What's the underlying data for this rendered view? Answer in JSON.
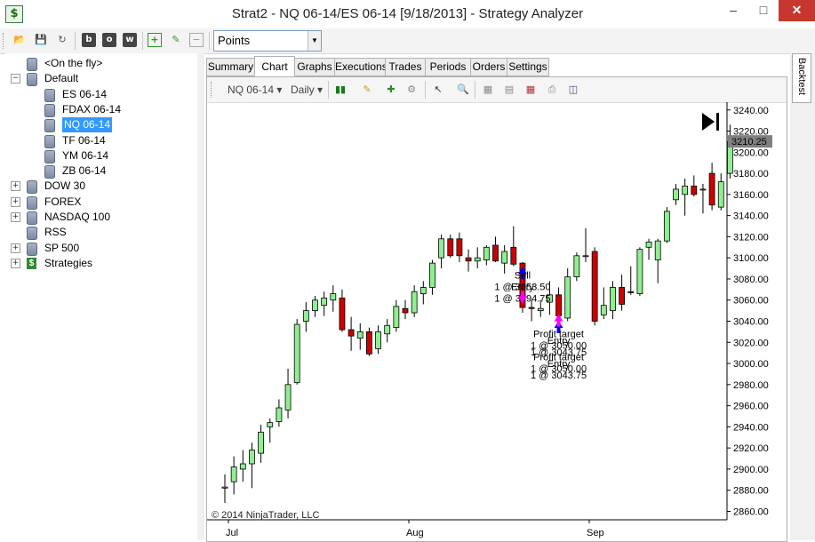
{
  "window": {
    "title": "Strat2 - NQ 06-14/ES 06-14 [9/18/2013] - Strategy Analyzer",
    "app_icon": "$",
    "min_label": "–",
    "max_label": "□",
    "close_label": "✕"
  },
  "toolbar": {
    "buttons": [
      "open-folder-icon",
      "save-icon",
      "refresh-icon",
      "b",
      "o",
      "w",
      "add-icon",
      "edit-icon",
      "remove-icon"
    ],
    "display_unit": "Points"
  },
  "tree": {
    "items": [
      {
        "label": "<On the fly>",
        "icon": "database-icon"
      },
      {
        "label": "Default",
        "icon": "database-icon",
        "expander": "−"
      },
      {
        "label": "ES 06-14",
        "icon": "database-icon"
      },
      {
        "label": "FDAX 06-14",
        "icon": "database-icon"
      },
      {
        "label": "NQ 06-14",
        "icon": "database-icon",
        "selected": true
      },
      {
        "label": "TF 06-14",
        "icon": "database-icon"
      },
      {
        "label": "YM 06-14",
        "icon": "database-icon"
      },
      {
        "label": "ZB 06-14",
        "icon": "database-icon"
      },
      {
        "label": "DOW 30",
        "icon": "database-icon",
        "expander": "+"
      },
      {
        "label": "FOREX",
        "icon": "database-icon",
        "expander": "+"
      },
      {
        "label": "NASDAQ 100",
        "icon": "database-icon",
        "expander": "+"
      },
      {
        "label": "RSS",
        "icon": "database-icon"
      },
      {
        "label": "SP 500",
        "icon": "database-icon",
        "expander": "+"
      },
      {
        "label": "Strategies",
        "icon": "strategy-icon",
        "expander": "+"
      }
    ]
  },
  "tabs": [
    "Summary",
    "Chart",
    "Graphs",
    "Executions",
    "Trades",
    "Periods",
    "Orders",
    "Settings"
  ],
  "active_tab": "Chart",
  "chart_toolbar": {
    "instrument": "NQ 06-14 ▾",
    "period": "Daily ▾"
  },
  "side_tab": "Backtest",
  "chart": {
    "copyright": "© 2014 NinjaTrader, LLC",
    "last_price": "3210.25",
    "colors": {
      "up": "#90ee90",
      "down": "#cc0000",
      "outline": "#000000",
      "long_arrow": "#0000ff",
      "short_arrow": "#ff00ff",
      "price_marker": "#808080"
    }
  },
  "chart_data": {
    "type": "candlestick",
    "y_ticks": [
      "3240.00",
      "3220.00",
      "3200.00",
      "3180.00",
      "3160.00",
      "3140.00",
      "3120.00",
      "3100.00",
      "3080.00",
      "3060.00",
      "3040.00",
      "3020.00",
      "3000.00",
      "2980.00",
      "2960.00",
      "2940.00",
      "2920.00",
      "2900.00",
      "2880.00",
      "2860.00"
    ],
    "ylim": [
      2852,
      3244
    ],
    "x_ticks": [
      "Jul",
      "Aug",
      "Sep"
    ],
    "x_tick_bar_index": [
      0,
      20,
      40
    ],
    "candles": [
      {
        "o": 2882,
        "h": 2895,
        "l": 2868,
        "c": 2883
      },
      {
        "o": 2888,
        "h": 2912,
        "l": 2876,
        "c": 2902
      },
      {
        "o": 2900,
        "h": 2918,
        "l": 2888,
        "c": 2905
      },
      {
        "o": 2905,
        "h": 2925,
        "l": 2882,
        "c": 2918
      },
      {
        "o": 2915,
        "h": 2942,
        "l": 2906,
        "c": 2935
      },
      {
        "o": 2940,
        "h": 2948,
        "l": 2925,
        "c": 2944
      },
      {
        "o": 2945,
        "h": 2966,
        "l": 2940,
        "c": 2958
      },
      {
        "o": 2956,
        "h": 2995,
        "l": 2948,
        "c": 2980
      },
      {
        "o": 2982,
        "h": 3042,
        "l": 2980,
        "c": 3037
      },
      {
        "o": 3040,
        "h": 3058,
        "l": 3030,
        "c": 3050
      },
      {
        "o": 3050,
        "h": 3064,
        "l": 3044,
        "c": 3060
      },
      {
        "o": 3055,
        "h": 3068,
        "l": 3045,
        "c": 3062
      },
      {
        "o": 3060,
        "h": 3074,
        "l": 3049,
        "c": 3066
      },
      {
        "o": 3062,
        "h": 3070,
        "l": 3030,
        "c": 3032
      },
      {
        "o": 3032,
        "h": 3044,
        "l": 3012,
        "c": 3026
      },
      {
        "o": 3024,
        "h": 3038,
        "l": 3013,
        "c": 3030
      },
      {
        "o": 3030,
        "h": 3034,
        "l": 3007,
        "c": 3009
      },
      {
        "o": 3014,
        "h": 3036,
        "l": 3009,
        "c": 3030
      },
      {
        "o": 3028,
        "h": 3042,
        "l": 3020,
        "c": 3036
      },
      {
        "o": 3034,
        "h": 3060,
        "l": 3030,
        "c": 3054
      },
      {
        "o": 3052,
        "h": 3060,
        "l": 3042,
        "c": 3048
      },
      {
        "o": 3048,
        "h": 3074,
        "l": 3044,
        "c": 3068
      },
      {
        "o": 3066,
        "h": 3078,
        "l": 3056,
        "c": 3072
      },
      {
        "o": 3072,
        "h": 3098,
        "l": 3065,
        "c": 3095
      },
      {
        "o": 3100,
        "h": 3122,
        "l": 3090,
        "c": 3118
      },
      {
        "o": 3118,
        "h": 3122,
        "l": 3100,
        "c": 3102
      },
      {
        "o": 3118,
        "h": 3124,
        "l": 3096,
        "c": 3102
      },
      {
        "o": 3100,
        "h": 3108,
        "l": 3087,
        "c": 3097
      },
      {
        "o": 3097,
        "h": 3110,
        "l": 3090,
        "c": 3100
      },
      {
        "o": 3098,
        "h": 3112,
        "l": 3093,
        "c": 3110
      },
      {
        "o": 3112,
        "h": 3120,
        "l": 3096,
        "c": 3097
      },
      {
        "o": 3095,
        "h": 3112,
        "l": 3085,
        "c": 3106
      },
      {
        "o": 3110,
        "h": 3130,
        "l": 3092,
        "c": 3094
      },
      {
        "o": 3095,
        "h": 3096,
        "l": 3048,
        "c": 3053
      },
      {
        "o": 3053,
        "h": 3060,
        "l": 3040,
        "c": 3052
      },
      {
        "o": 3050,
        "h": 3060,
        "l": 3044,
        "c": 3052
      },
      {
        "o": 3058,
        "h": 3078,
        "l": 3046,
        "c": 3065
      },
      {
        "o": 3065,
        "h": 3072,
        "l": 3043,
        "c": 3045
      },
      {
        "o": 3043,
        "h": 3090,
        "l": 3040,
        "c": 3082
      },
      {
        "o": 3082,
        "h": 3105,
        "l": 3078,
        "c": 3102
      },
      {
        "o": 3102,
        "h": 3128,
        "l": 3096,
        "c": 3102
      },
      {
        "o": 3106,
        "h": 3110,
        "l": 3036,
        "c": 3040
      },
      {
        "o": 3046,
        "h": 3072,
        "l": 3042,
        "c": 3055
      },
      {
        "o": 3050,
        "h": 3078,
        "l": 3042,
        "c": 3072
      },
      {
        "o": 3072,
        "h": 3084,
        "l": 3050,
        "c": 3056
      },
      {
        "o": 3068,
        "h": 3092,
        "l": 3065,
        "c": 3067
      },
      {
        "o": 3066,
        "h": 3110,
        "l": 3064,
        "c": 3108
      },
      {
        "o": 3110,
        "h": 3118,
        "l": 3098,
        "c": 3115
      },
      {
        "o": 3098,
        "h": 3118,
        "l": 3076,
        "c": 3116
      },
      {
        "o": 3116,
        "h": 3148,
        "l": 3114,
        "c": 3144
      },
      {
        "o": 3155,
        "h": 3170,
        "l": 3150,
        "c": 3165
      },
      {
        "o": 3160,
        "h": 3175,
        "l": 3140,
        "c": 3168
      },
      {
        "o": 3168,
        "h": 3178,
        "l": 3158,
        "c": 3160
      },
      {
        "o": 3165,
        "h": 3170,
        "l": 3142,
        "c": 3165
      },
      {
        "o": 3180,
        "h": 3190,
        "l": 3145,
        "c": 3150
      },
      {
        "o": 3148,
        "h": 3180,
        "l": 3145,
        "c": 3172
      },
      {
        "o": 3180,
        "h": 3226,
        "l": 3175,
        "c": 3210
      }
    ],
    "annotations": [
      {
        "bar": 33,
        "price": 3094.75,
        "side": "below",
        "kind": "long-entry",
        "lines": [
          "Entry",
          "1 @ 3094.75"
        ]
      },
      {
        "bar": 33,
        "price": 3053.5,
        "side": "above",
        "kind": "short-exit",
        "lines": [
          "Sell",
          "1 @ 3053.50"
        ]
      },
      {
        "bar": 37,
        "price": 3043.75,
        "side": "below",
        "kind": "long-entry",
        "lines": [
          "Entry",
          "1 @ 3043.75",
          "Entry",
          "1 @ 3043.75"
        ]
      },
      {
        "bar": 37,
        "price": 3050.0,
        "side": "below",
        "kind": "short-exit",
        "lines": [
          "Profit target",
          "1 @ 3050.00",
          "Profit target",
          "1 @ 3050.00"
        ]
      }
    ],
    "last_price": 3210.25
  }
}
